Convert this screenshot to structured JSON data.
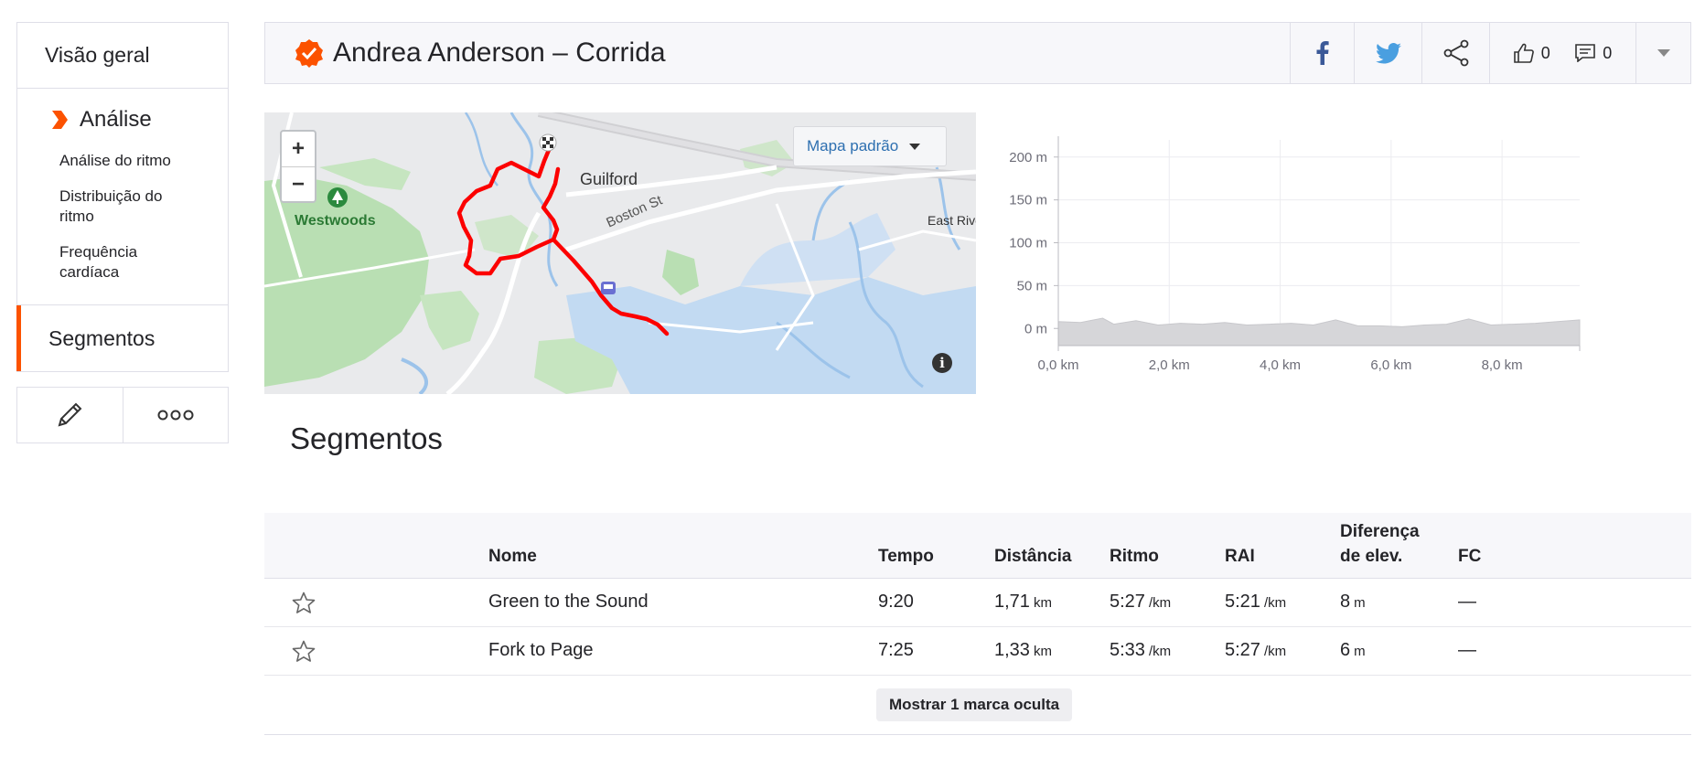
{
  "sidebar": {
    "overview": "Visão geral",
    "analysis": "Análise",
    "analysis_items": [
      "Análise do ritmo",
      "Distribuição do ritmo",
      "Frequência cardíaca"
    ],
    "segments": "Segmentos"
  },
  "header": {
    "title": "Andrea Anderson – Corrida",
    "kudos_count": "0",
    "comments_count": "0"
  },
  "map": {
    "style_label": "Mapa padrão",
    "labels": {
      "park": "Westwoods",
      "town": "Guilford",
      "street": "Boston St",
      "east": "East Rive"
    },
    "zoom_in": "+",
    "zoom_out": "−",
    "info": "i"
  },
  "chart_data": {
    "type": "area",
    "ylabel_ticks": [
      "200 m",
      "150 m",
      "100 m",
      "50 m",
      "0 m"
    ],
    "xlabel_ticks": [
      "0,0 km",
      "2,0 km",
      "4,0 km",
      "6,0 km",
      "8,0 km"
    ],
    "ylim": [
      -20,
      220
    ],
    "xlim": [
      0,
      9.4
    ],
    "x": [
      0,
      0.4,
      0.8,
      1.0,
      1.4,
      1.8,
      2.2,
      2.6,
      3.0,
      3.4,
      3.8,
      4.2,
      4.6,
      5.0,
      5.4,
      5.8,
      6.2,
      6.6,
      7.0,
      7.4,
      7.8,
      8.2,
      8.6,
      9.0,
      9.4
    ],
    "y": [
      8,
      7,
      12,
      5,
      9,
      4,
      6,
      5,
      7,
      4,
      5,
      6,
      4,
      10,
      3,
      3,
      2,
      4,
      5,
      11,
      4,
      5,
      6,
      8,
      10
    ],
    "grid": true
  },
  "segments": {
    "title": "Segmentos",
    "headers": {
      "name": "Nome",
      "time": "Tempo",
      "distance": "Distância",
      "pace": "Ritmo",
      "gap": "RAI",
      "elev1": "Diferença",
      "elev2": "de elev.",
      "hr": "FC"
    },
    "rows": [
      {
        "name": "Green to the Sound",
        "time": "9:20",
        "distance": "1,71",
        "distance_unit": "km",
        "pace": "5:27",
        "pace_unit": "/km",
        "gap": "5:21",
        "gap_unit": "/km",
        "elev": "8",
        "elev_unit": "m",
        "hr": "—"
      },
      {
        "name": "Fork to Page",
        "time": "7:25",
        "distance": "1,33",
        "distance_unit": "km",
        "pace": "5:33",
        "pace_unit": "/km",
        "gap": "5:27",
        "gap_unit": "/km",
        "elev": "6",
        "elev_unit": "m",
        "hr": "—"
      }
    ],
    "show_hidden": "Mostrar 1 marca oculta"
  },
  "colors": {
    "brand": "#fc5200",
    "route": "#ff0000",
    "link": "#2d6fb0"
  }
}
